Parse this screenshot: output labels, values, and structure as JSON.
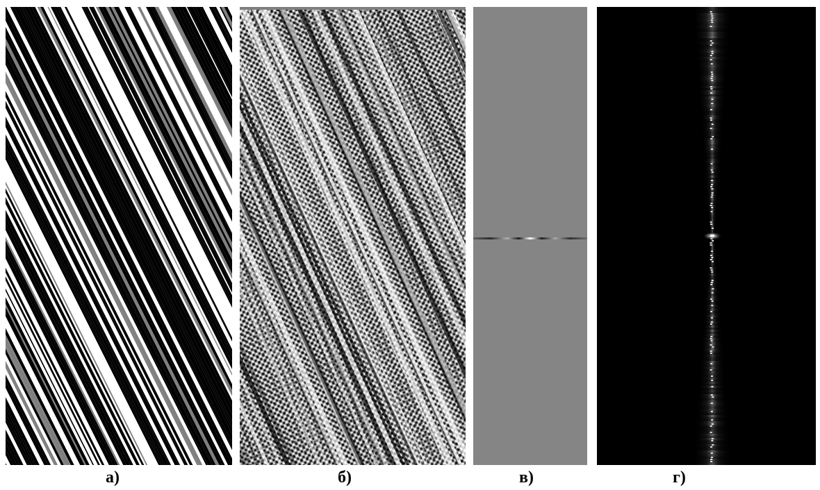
{
  "captions": {
    "a": "а)",
    "b": "б)",
    "c": "в)",
    "d": "г)"
  },
  "colors": {
    "page_background": "#ffffff",
    "stripe_black": "#000000",
    "stripe_white": "#ffffff",
    "stripe_gray": "#808080",
    "panel_c_background": "#858585",
    "panel_d_background": "#000000"
  },
  "panels": {
    "a": "diagonal-stripe-pattern",
    "b": "interference-texture-pattern",
    "c": "flat-gray-field-with-single-line",
    "d": "black-field-with-vertical-spectrum-streak"
  }
}
